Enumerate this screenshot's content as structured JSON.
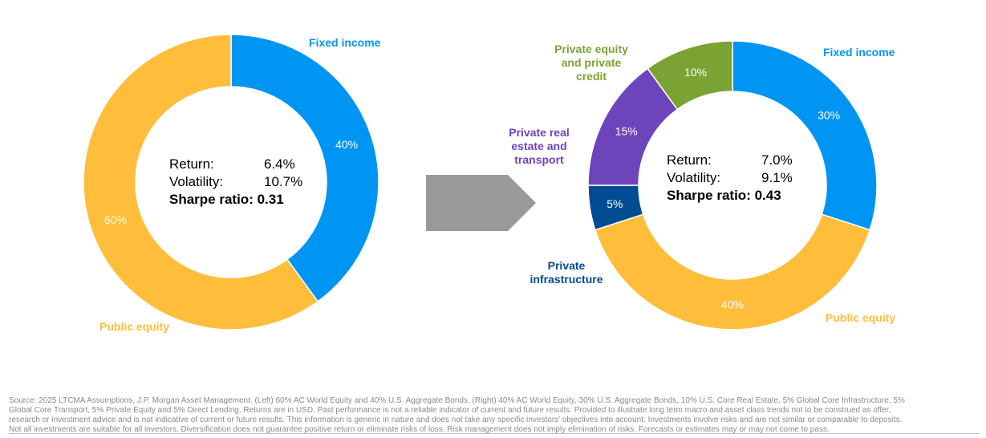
{
  "colors": {
    "fixed_income": "#0095F2",
    "public_equity": "#FEBE3B",
    "private_equity": "#7BA334",
    "private_real_estate": "#6E44BA",
    "private_infrastructure": "#004C92",
    "arrow": "#999999"
  },
  "chart_data": [
    {
      "type": "pie",
      "donut": true,
      "slices": [
        {
          "label": "Fixed income",
          "value": 40,
          "value_label": "40%",
          "color": "#0095F2"
        },
        {
          "label": "Public equity",
          "value": 60,
          "value_label": "60%",
          "color": "#FEBE3B"
        }
      ]
    },
    {
      "type": "pie",
      "donut": true,
      "slices": [
        {
          "label": "Fixed income",
          "value": 30,
          "value_label": "30%",
          "color": "#0095F2"
        },
        {
          "label": "Public equity",
          "value": 40,
          "value_label": "40%",
          "color": "#FEBE3B"
        },
        {
          "label": "Private infrastructure",
          "value": 5,
          "value_label": "5%",
          "color": "#004C92"
        },
        {
          "label": "Private real estate and transport",
          "value": 15,
          "value_label": "15%",
          "color": "#6E44BA"
        },
        {
          "label": "Private equity and private credit",
          "value": 10,
          "value_label": "10%",
          "color": "#7BA334"
        }
      ]
    }
  ],
  "left": {
    "return_label": "Return:",
    "return_value": "6.4%",
    "volatility_label": "Volatility:",
    "volatility_value": "10.7%",
    "sharpe": "Sharpe ratio: 0.31",
    "fixed_income_label": "Fixed income",
    "public_equity_label": "Public equity"
  },
  "right": {
    "return_label": "Return:",
    "return_value": "7.0%",
    "volatility_label": "Volatility:",
    "volatility_value": "9.1%",
    "sharpe": "Sharpe ratio: 0.43",
    "fixed_income_label": "Fixed income",
    "public_equity_label": "Public equity",
    "private_equity_label": "Private equity and private credit",
    "private_real_estate_label": "Private real estate and transport",
    "private_infrastructure_label": "Private infrastructure"
  },
  "footnote": {
    "line1": "Source: 2025 LTCMA Assumptions, J.P. Morgan Asset Management. (Left) 60% AC World Equity and 40% U.S. Aggregate Bonds. (Right) 40% AC World Equity, 30% U.S. Aggregate Bonds, 10% U.S. Core Real Estate, 5% Global Core Infrastructure, 5%",
    "line2": "Global Core Transport, 5% Private Equity and 5% Direct Lending. Returns are in USD. Past performance is not a reliable indicator of current and future results. Provided to illustrate long term macro and asset class trends not to be construed as offer,",
    "line3": "research or investment advice and is not indicative of current or future results. This information is generic in nature and does not take any specific investors' objectives into account. Investments involve risks and are not similar or comparable to deposits.",
    "line4": "Not all investments are suitable for all investors. Diversification does not guarantee positive return or eliminate risks of loss. Risk management does not imply elimination of risks. Forecasts or estimates may or may not come to pass."
  }
}
